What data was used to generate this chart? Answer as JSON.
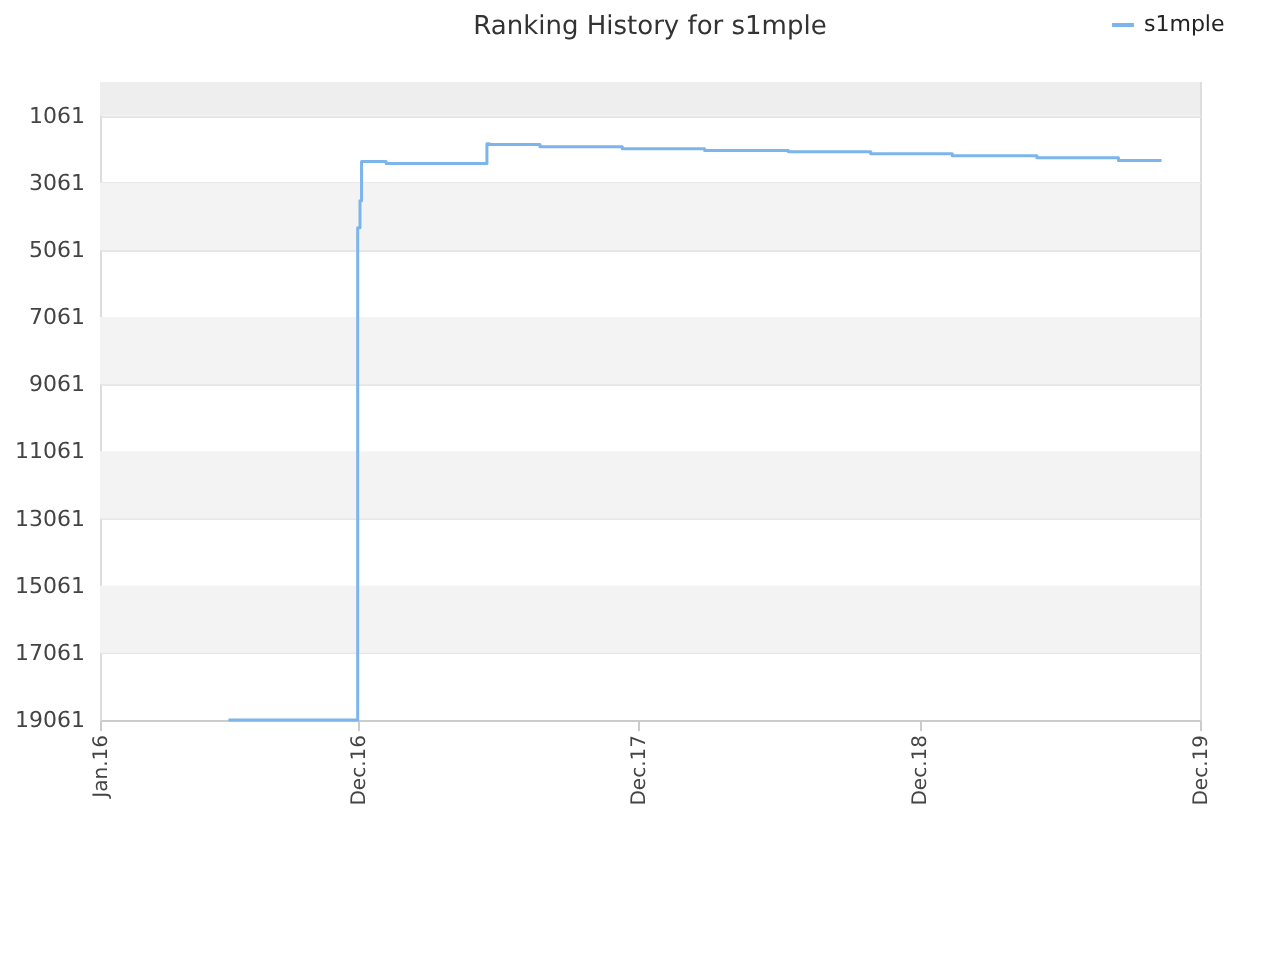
{
  "chart_data": {
    "type": "step",
    "title": "Ranking History for s1mple",
    "series": [
      {
        "name": "s1mple",
        "color": "#7cb5ec",
        "x": [
          "2016-06-16",
          "2016-12-01",
          "2016-12-04",
          "2016-12-06",
          "2017-01-07",
          "2017-05-18",
          "2017-05-21",
          "2017-07-26",
          "2017-11-10",
          "2018-02-25",
          "2018-06-14",
          "2018-09-29",
          "2019-01-13",
          "2019-05-03",
          "2019-08-17",
          "2019-10-12"
        ],
        "values": [
          19061,
          4400,
          3600,
          2430,
          2490,
          1900,
          1920,
          1990,
          2050,
          2100,
          2140,
          2200,
          2260,
          2320,
          2400,
          2400
        ]
      }
    ],
    "xlim": [
      "2016-01-01",
      "2019-12-01"
    ],
    "xticks": [
      {
        "value": "2016-01-01",
        "label": "Jan.16"
      },
      {
        "value": "2016-12-01",
        "label": "Dec.16"
      },
      {
        "value": "2017-12-01",
        "label": "Dec.17"
      },
      {
        "value": "2018-12-01",
        "label": "Dec.18"
      },
      {
        "value": "2019-12-01",
        "label": "Dec.19"
      }
    ],
    "ylim": [
      19061,
      61
    ],
    "yticks": [
      1061,
      3061,
      5061,
      7061,
      9061,
      11061,
      13061,
      15061,
      17061,
      19061
    ],
    "grid": "y",
    "legend": "top right",
    "marker": "none",
    "line_style": "solid"
  }
}
